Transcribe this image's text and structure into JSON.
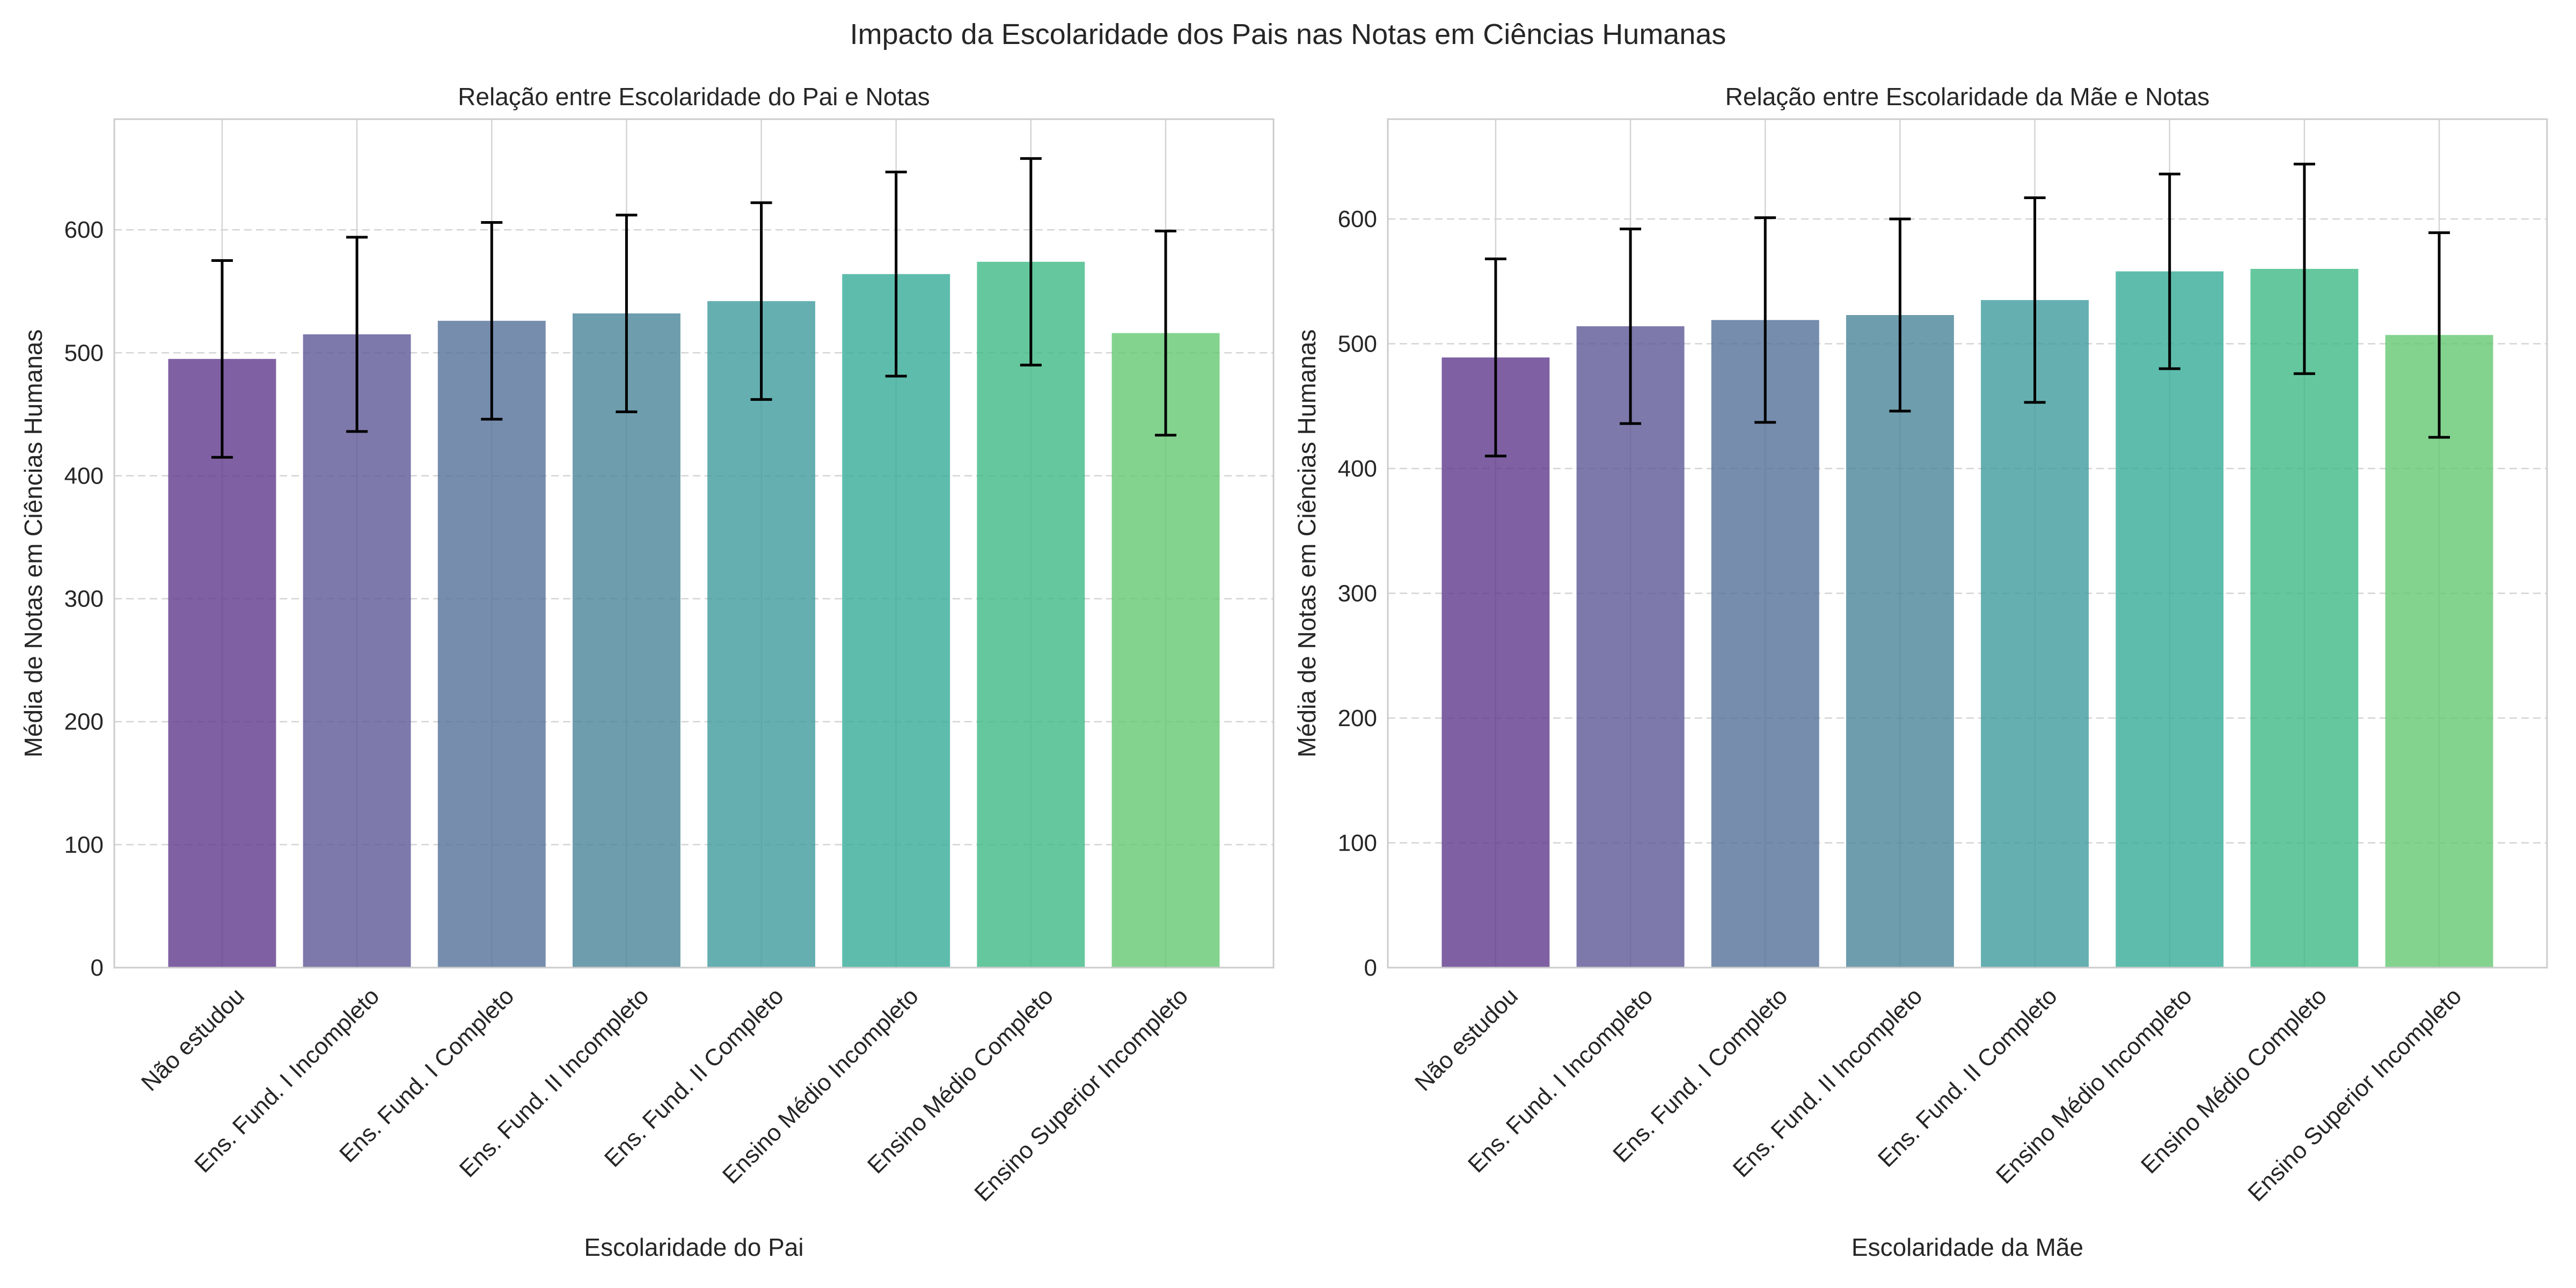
{
  "figure_title": "Impacto da Escolaridade dos Pais nas Notas em Ciências Humanas",
  "colors": {
    "bars": [
      "#5f3a8c",
      "#5d5796",
      "#547099",
      "#4a8599",
      "#3e9b9d",
      "#36ab98",
      "#3fb985",
      "#64c873"
    ],
    "error_bar": "#000000",
    "grid": "#d4d4d4",
    "axes_edge": "#cccccc"
  },
  "chart_data": [
    {
      "type": "bar",
      "title": "Relação entre Escolaridade do Pai e Notas",
      "xlabel": "Escolaridade do Pai",
      "ylabel": "Média de Notas em Ciências Humanas",
      "ylim": [
        0,
        690
      ],
      "yticks": [
        0,
        100,
        200,
        300,
        400,
        500,
        600
      ],
      "grid": true,
      "categories": [
        "Não estudou",
        "Ens. Fund. I Incompleto",
        "Ens. Fund. I Completo",
        "Ens. Fund. II Incompleto",
        "Ens. Fund. II Completo",
        "Ensino Médio Incompleto",
        "Ensino Médio Completo",
        "Ensino Superior Incompleto"
      ],
      "values": [
        495,
        515,
        526,
        532,
        542,
        564,
        574,
        516
      ],
      "error": [
        80,
        79,
        80,
        80,
        80,
        83,
        84,
        83
      ]
    },
    {
      "type": "bar",
      "title": "Relação entre Escolaridade da Mãe e Notas",
      "xlabel": "Escolaridade da Mãe",
      "ylabel": "Média de Notas em Ciências Humanas",
      "ylim": [
        0,
        680
      ],
      "yticks": [
        0,
        100,
        200,
        300,
        400,
        500,
        600
      ],
      "grid": true,
      "categories": [
        "Não estudou",
        "Ens. Fund. I Incompleto",
        "Ens. Fund. I Completo",
        "Ens. Fund. II Incompleto",
        "Ens. Fund. II Completo",
        "Ensino Médio Incompleto",
        "Ensino Médio Completo",
        "Ensino Superior Incompleto"
      ],
      "values": [
        489,
        514,
        519,
        523,
        535,
        558,
        560,
        507
      ],
      "error": [
        79,
        78,
        82,
        77,
        82,
        78,
        84,
        82
      ]
    }
  ]
}
